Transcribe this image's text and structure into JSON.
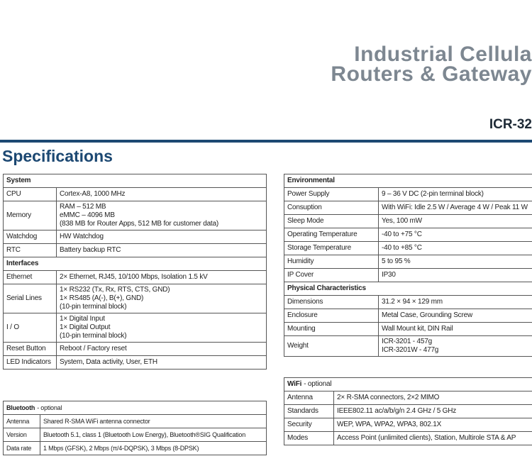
{
  "header": {
    "line1": "Industrial Cellula",
    "line2": "Routers & Gateway",
    "model": "ICR-32"
  },
  "title": "Specifications",
  "tables": [
    {
      "title": "System",
      "rows": [
        {
          "label": "CPU",
          "value": [
            "Cortex-A8, 1000 MHz"
          ]
        },
        {
          "label": "Memory",
          "value": [
            "RAM – 512 MB",
            "eMMC – 4096 MB",
            "(838 MB for Router Apps, 512 MB for customer data)"
          ]
        },
        {
          "label": "Watchdog",
          "value": [
            "HW Watchdog"
          ]
        },
        {
          "label": "RTC",
          "value": [
            "Battery backup RTC"
          ]
        },
        {
          "section": "Interfaces"
        },
        {
          "label": "Ethernet",
          "value": [
            "2× Ethernet, RJ45, 10/100 Mbps, Isolation 1.5 kV"
          ]
        },
        {
          "label": "Serial Lines",
          "value": [
            "1× RS232 (Tx, Rx, RTS, CTS, GND)",
            "1× RS485 (A(-), B(+), GND)",
            "(10-pin terminal block)"
          ]
        },
        {
          "label": "I / O",
          "value": [
            "1× Digital Input",
            "1× Digital Output",
            "(10-pin terminal block)"
          ]
        },
        {
          "label": "Reset Button",
          "value": [
            "Reboot / Factory reset"
          ]
        },
        {
          "label": "LED Indicators",
          "value": [
            "System, Data activity, User, ETH"
          ]
        }
      ]
    },
    {
      "title": "Bluetooth",
      "note": "- optional",
      "rows": [
        {
          "label": "Antenna",
          "value": [
            "Shared R-SMA WiFi antenna connector"
          ]
        },
        {
          "label": "Version",
          "value": [
            "Bluetooth 5.1, class 1 (Bluetooth Low Energy), Bluetooth®SIG Qualification"
          ]
        },
        {
          "label": "Data rate",
          "value": [
            "1 Mbps (GFSK), 2 Mbps (π/4-DQPSK), 3 Mbps (8-DPSK)"
          ]
        }
      ]
    },
    {
      "title": "Environmental",
      "rows": [
        {
          "label": "Power Supply",
          "value": [
            "9 – 36 V DC (2-pin terminal block)"
          ]
        },
        {
          "label": "Consuption",
          "value": [
            "With WiFi: Idle 2.5 W / Average 4 W / Peak 11 W"
          ]
        },
        {
          "label": "Sleep Mode",
          "value": [
            "Yes, 100 mW"
          ]
        },
        {
          "label": "Operating Temperature",
          "value": [
            "-40 to +75 °C"
          ]
        },
        {
          "label": "Storage Temperature",
          "value": [
            "-40 to +85 °C"
          ]
        },
        {
          "label": "Humidity",
          "value": [
            "5 to 95 %"
          ]
        },
        {
          "label": "IP Cover",
          "value": [
            "IP30"
          ]
        },
        {
          "section": "Physical Characteristics"
        },
        {
          "label": "Dimensions",
          "value": [
            "31.2 × 94 × 129 mm"
          ]
        },
        {
          "label": "Enclosure",
          "value": [
            "Metal Case, Grounding Screw"
          ]
        },
        {
          "label": "Mounting",
          "value": [
            "Wall Mount kit, DIN Rail"
          ]
        },
        {
          "label": "Weight",
          "value": [
            "ICR-3201 - 457g",
            "ICR-3201W - 477g"
          ]
        }
      ]
    },
    {
      "title": "WiFi",
      "note": "- optional",
      "rows": [
        {
          "label": "Antenna",
          "value": [
            "2× R-SMA connectors, 2×2 MIMO"
          ]
        },
        {
          "label": "Standards",
          "value": [
            "IEEE802.11 ac/a/b/g/n 2.4 GHz / 5 GHz"
          ]
        },
        {
          "label": "Security",
          "value": [
            "WEP, WPA, WPA2, WPA3, 802.1X"
          ]
        },
        {
          "label": "Modes",
          "value": [
            "Access Point (unlimited clients), Station, Multirole STA & AP"
          ]
        }
      ]
    }
  ]
}
